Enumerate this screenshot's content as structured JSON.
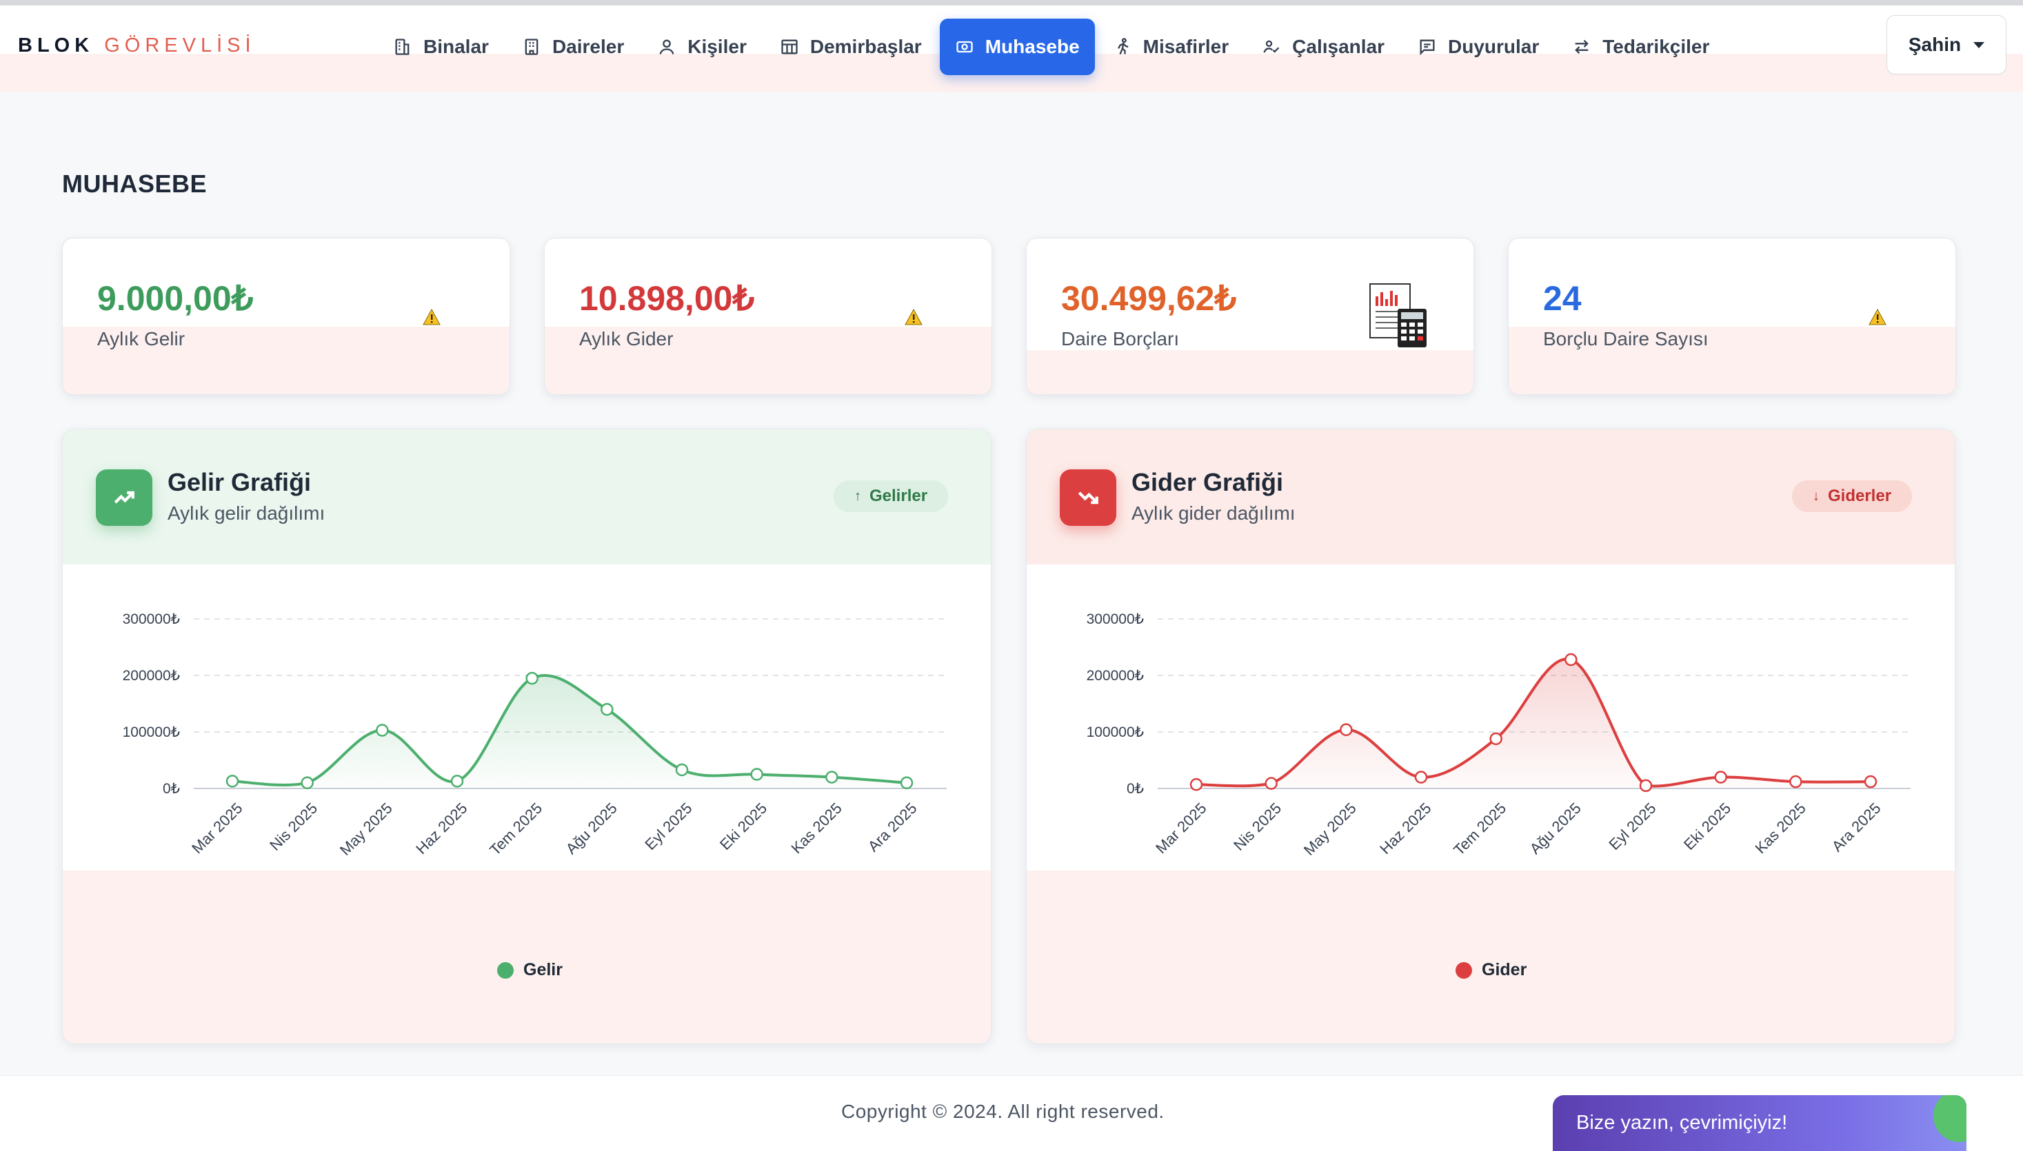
{
  "brand": {
    "part1": "BLOK",
    "part2": "GÖREVLİSİ"
  },
  "nav": {
    "items": [
      {
        "label": "Binalar",
        "icon": "building-icon"
      },
      {
        "label": "Daireler",
        "icon": "apartment-icon"
      },
      {
        "label": "Kişiler",
        "icon": "person-icon"
      },
      {
        "label": "Demirbaşlar",
        "icon": "table-icon"
      },
      {
        "label": "Muhasebe",
        "icon": "cash-icon",
        "active": true
      },
      {
        "label": "Misafirler",
        "icon": "walking-icon"
      },
      {
        "label": "Çalışanlar",
        "icon": "worker-icon"
      },
      {
        "label": "Duyurular",
        "icon": "message-icon"
      },
      {
        "label": "Tedarikçiler",
        "icon": "swap-icon"
      }
    ],
    "user": "Şahin"
  },
  "page": {
    "title": "MUHASEBE"
  },
  "stats": [
    {
      "value": "9.000,00₺",
      "label": "Aylık Gelir",
      "color": "#3d9b5c",
      "icon": "warning-icon"
    },
    {
      "value": "10.898,00₺",
      "label": "Aylık Gider",
      "color": "#d3393a",
      "icon": "warning-icon"
    },
    {
      "value": "30.499,62₺",
      "label": "Daire Borçları",
      "color": "#e0622a",
      "icon": "calculator-document-icon"
    },
    {
      "value": "24",
      "label": "Borçlu Daire Sayısı",
      "color": "#2a6ae0",
      "icon": "warning-icon"
    }
  ],
  "colors": {
    "accent": "#2868e8",
    "income": "#4caf6e",
    "expense": "#dc3f3f",
    "tint": "#fdf0ee"
  },
  "income_chart": {
    "title": "Gelir Grafiği",
    "subtitle": "Aylık gelir dağılımı",
    "badge": "Gelirler",
    "badge_arrow": "↑",
    "legend": "Gelir",
    "y_ticks": [
      "300000₺",
      "200000₺",
      "100000₺",
      "0₺"
    ]
  },
  "expense_chart": {
    "title": "Gider Grafiği",
    "subtitle": "Aylık gider dağılımı",
    "badge": "Giderler",
    "badge_arrow": "↓",
    "legend": "Gider",
    "y_ticks": [
      "300000₺",
      "200000₺",
      "100000₺",
      "0₺"
    ]
  },
  "chart_data": [
    {
      "type": "line",
      "title": "Gelir Grafiği",
      "categories": [
        "Mar 2025",
        "Nis 2025",
        "May 2025",
        "Haz 2025",
        "Tem 2025",
        "Ağu 2025",
        "Eyl 2025",
        "Eki 2025",
        "Kas 2025",
        "Ara 2025"
      ],
      "series": [
        {
          "name": "Gelir",
          "values": [
            13000,
            10000,
            103000,
            13000,
            195000,
            140000,
            33000,
            25000,
            20000,
            10000
          ]
        }
      ],
      "ylim": [
        0,
        300000
      ],
      "y_ticks": [
        0,
        100000,
        200000,
        300000
      ],
      "grid": true,
      "legend": "bottom",
      "color": "#4caf6e"
    },
    {
      "type": "line",
      "title": "Gider Grafiği",
      "categories": [
        "Mar 2025",
        "Nis 2025",
        "May 2025",
        "Haz 2025",
        "Tem 2025",
        "Ağu 2025",
        "Eyl 2025",
        "Eki 2025",
        "Kas 2025",
        "Ara 2025"
      ],
      "series": [
        {
          "name": "Gider",
          "values": [
            7000,
            9000,
            104000,
            20000,
            88000,
            228000,
            5000,
            20000,
            12000,
            12000
          ]
        }
      ],
      "ylim": [
        0,
        300000
      ],
      "y_ticks": [
        0,
        100000,
        200000,
        300000
      ],
      "grid": true,
      "legend": "bottom",
      "color": "#dc3f3f"
    }
  ],
  "footer": {
    "copyright": "Copyright © 2024. All right reserved."
  },
  "chat": {
    "label": "Bize yazın, çevrimiçiyiz!"
  }
}
